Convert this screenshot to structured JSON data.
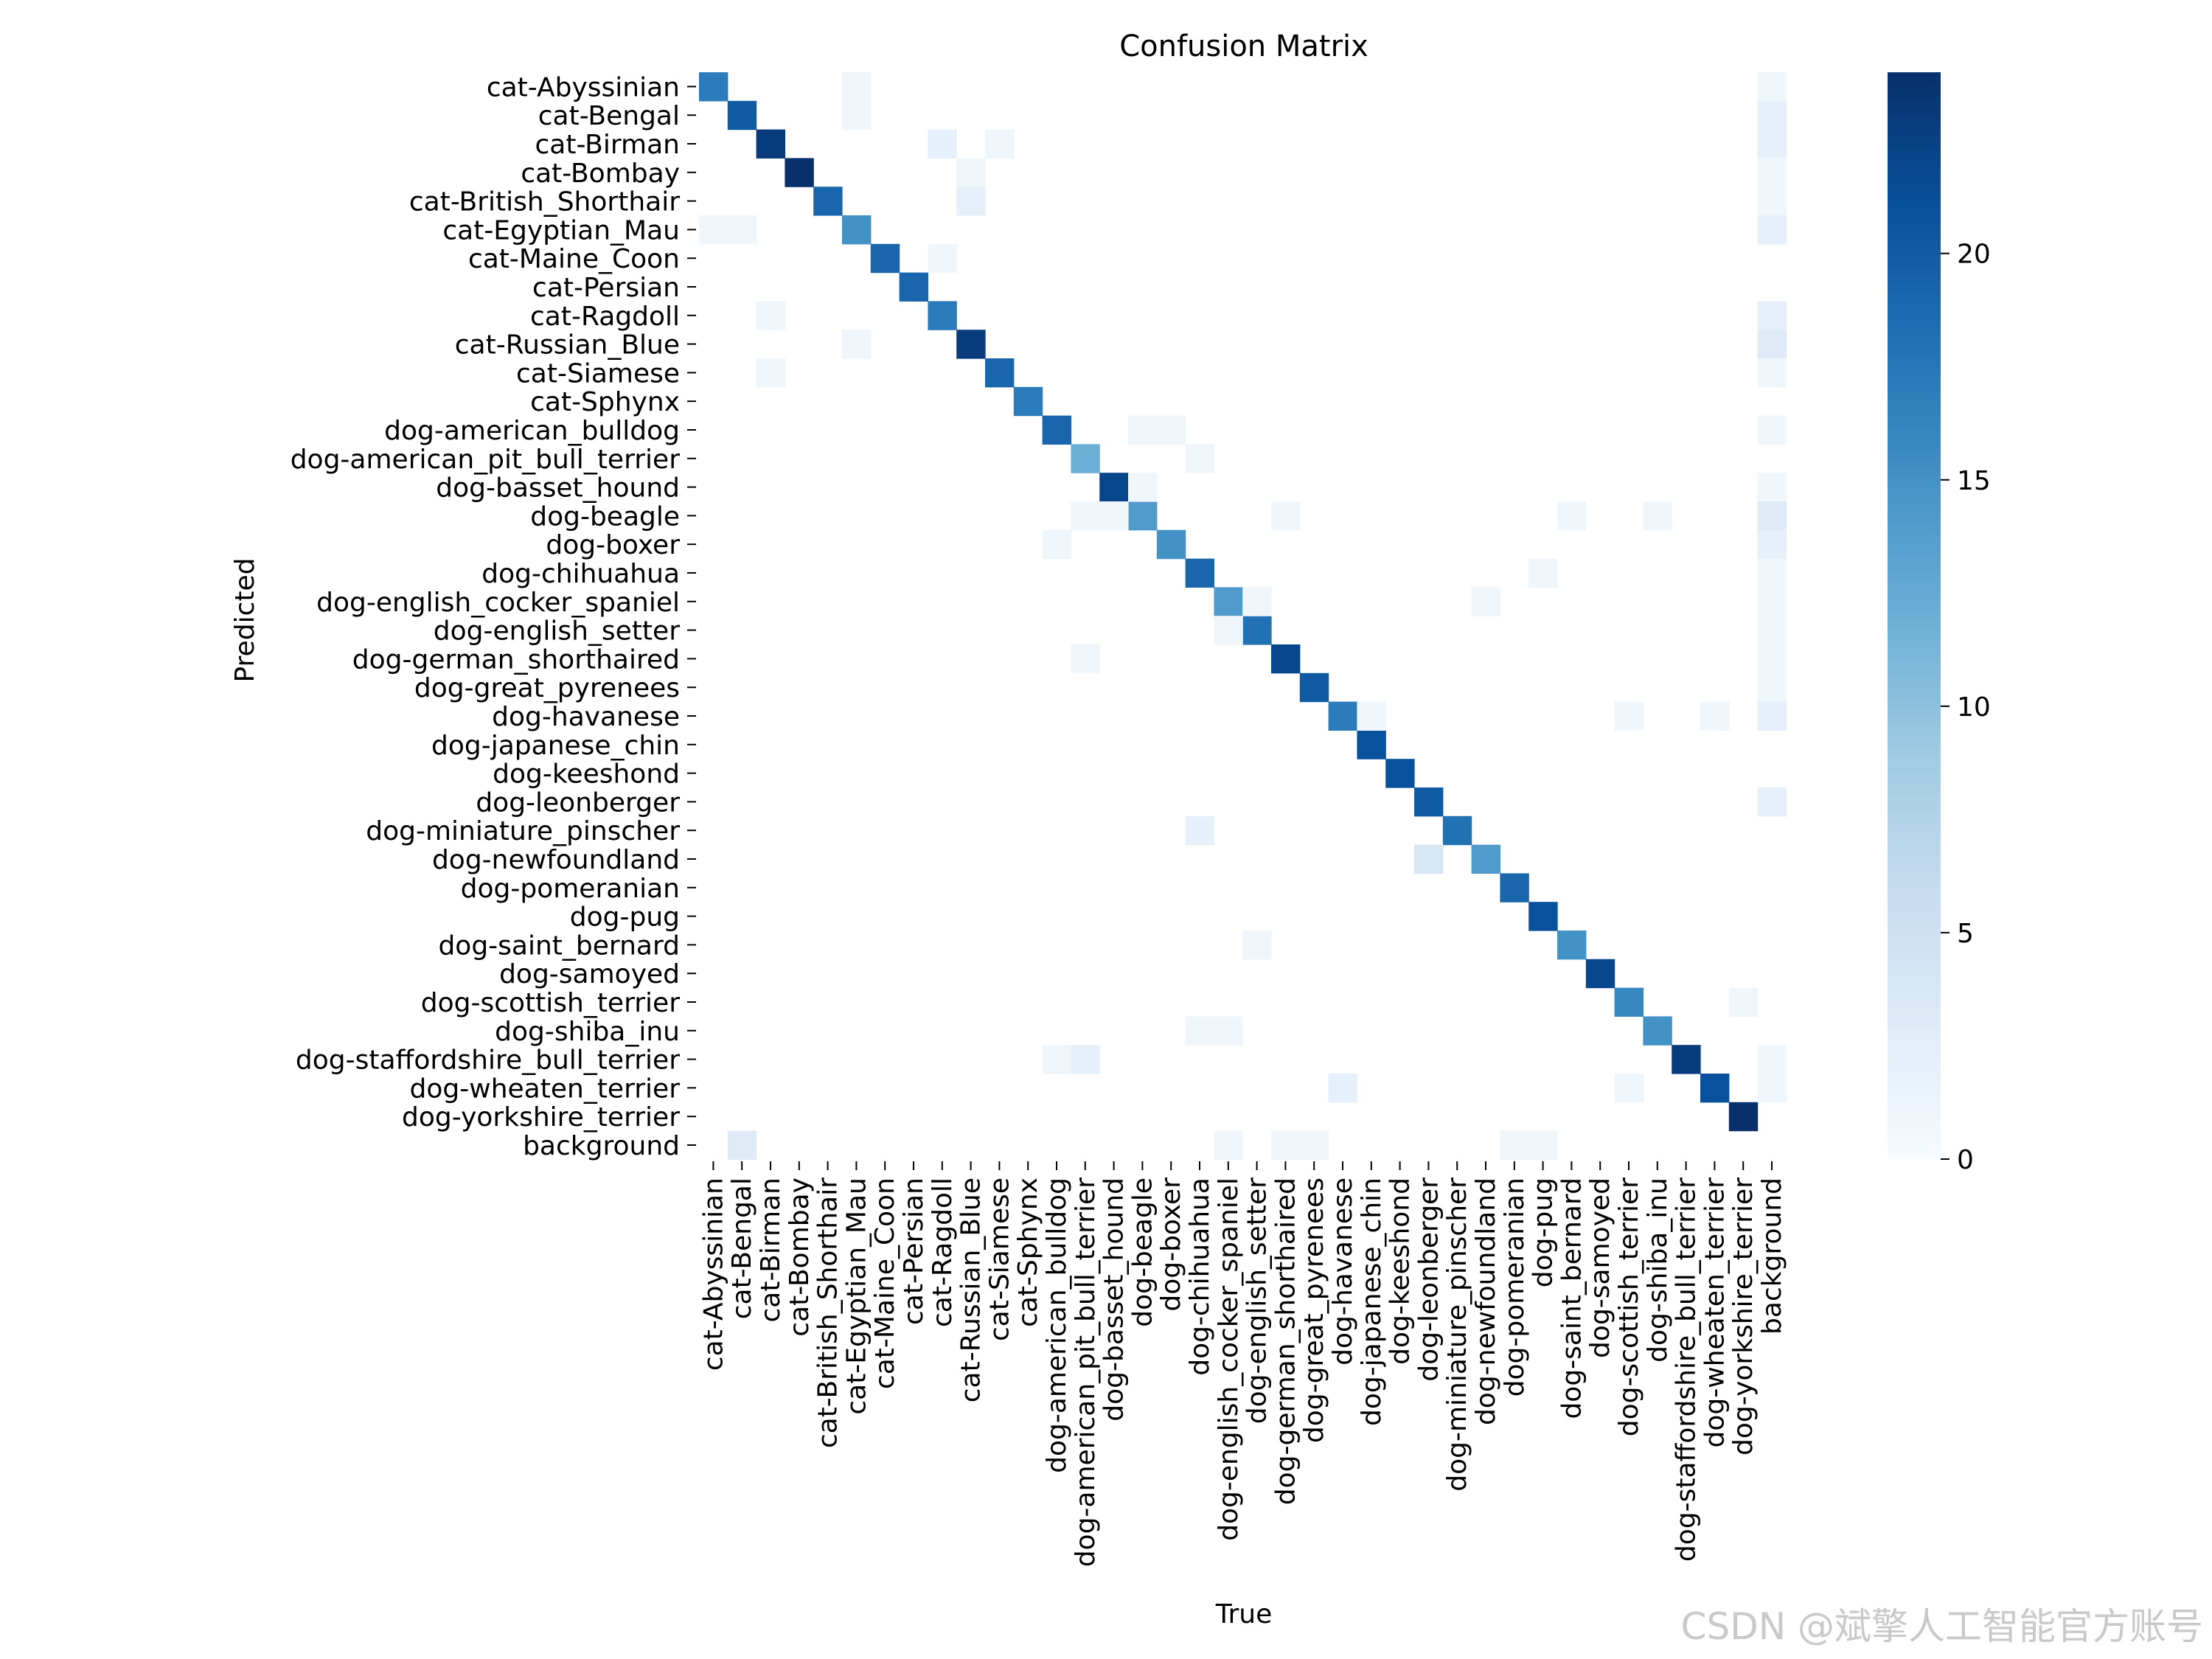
{
  "watermark": "CSDN @斌擎人工智能官方账号",
  "chart_data": {
    "type": "heatmap",
    "title": "Confusion Matrix",
    "xlabel": "True",
    "ylabel": "Predicted",
    "labels": [
      "cat-Abyssinian",
      "cat-Bengal",
      "cat-Birman",
      "cat-Bombay",
      "cat-British_Shorthair",
      "cat-Egyptian_Mau",
      "cat-Maine_Coon",
      "cat-Persian",
      "cat-Ragdoll",
      "cat-Russian_Blue",
      "cat-Siamese",
      "cat-Sphynx",
      "dog-american_bulldog",
      "dog-american_pit_bull_terrier",
      "dog-basset_hound",
      "dog-beagle",
      "dog-boxer",
      "dog-chihuahua",
      "dog-english_cocker_spaniel",
      "dog-english_setter",
      "dog-german_shorthaired",
      "dog-great_pyrenees",
      "dog-havanese",
      "dog-japanese_chin",
      "dog-keeshond",
      "dog-leonberger",
      "dog-miniature_pinscher",
      "dog-newfoundland",
      "dog-pomeranian",
      "dog-pug",
      "dog-saint_bernard",
      "dog-samoyed",
      "dog-scottish_terrier",
      "dog-shiba_inu",
      "dog-staffordshire_bull_terrier",
      "dog-wheaten_terrier",
      "dog-yorkshire_terrier",
      "background"
    ],
    "diagonal": [
      17,
      20,
      23,
      24,
      19,
      15,
      19,
      19,
      17,
      23,
      19,
      17,
      19,
      12,
      22,
      14,
      15,
      19,
      14,
      18,
      22,
      20,
      17,
      21,
      21,
      20,
      18,
      14,
      19,
      21,
      15,
      22,
      16,
      15,
      23,
      21,
      24
    ],
    "off_diagonal": [
      [
        0,
        5,
        1
      ],
      [
        0,
        37,
        1
      ],
      [
        1,
        5,
        1
      ],
      [
        1,
        37,
        2
      ],
      [
        2,
        8,
        2
      ],
      [
        2,
        10,
        1
      ],
      [
        2,
        37,
        2
      ],
      [
        3,
        9,
        1
      ],
      [
        3,
        37,
        1
      ],
      [
        4,
        9,
        2
      ],
      [
        4,
        37,
        1
      ],
      [
        5,
        0,
        1
      ],
      [
        5,
        1,
        1
      ],
      [
        5,
        37,
        2
      ],
      [
        6,
        8,
        1
      ],
      [
        8,
        2,
        1
      ],
      [
        8,
        37,
        2
      ],
      [
        9,
        5,
        1
      ],
      [
        9,
        37,
        3
      ],
      [
        10,
        2,
        1
      ],
      [
        10,
        37,
        1
      ],
      [
        12,
        15,
        1
      ],
      [
        12,
        16,
        1
      ],
      [
        12,
        37,
        1
      ],
      [
        13,
        17,
        1
      ],
      [
        14,
        15,
        1
      ],
      [
        14,
        37,
        1
      ],
      [
        15,
        13,
        1
      ],
      [
        15,
        14,
        1
      ],
      [
        15,
        20,
        1
      ],
      [
        15,
        30,
        1
      ],
      [
        15,
        33,
        1
      ],
      [
        15,
        37,
        3
      ],
      [
        16,
        12,
        1
      ],
      [
        16,
        37,
        2
      ],
      [
        17,
        29,
        1
      ],
      [
        17,
        37,
        1
      ],
      [
        18,
        19,
        1
      ],
      [
        18,
        27,
        1
      ],
      [
        18,
        37,
        1
      ],
      [
        19,
        18,
        1
      ],
      [
        19,
        37,
        1
      ],
      [
        20,
        13,
        1
      ],
      [
        20,
        37,
        1
      ],
      [
        21,
        37,
        1
      ],
      [
        22,
        23,
        1
      ],
      [
        22,
        32,
        1
      ],
      [
        22,
        35,
        1
      ],
      [
        22,
        37,
        2
      ],
      [
        25,
        37,
        2
      ],
      [
        26,
        17,
        2
      ],
      [
        27,
        25,
        4
      ],
      [
        30,
        19,
        1
      ],
      [
        32,
        36,
        1
      ],
      [
        33,
        17,
        1
      ],
      [
        33,
        18,
        1
      ],
      [
        34,
        12,
        1
      ],
      [
        34,
        13,
        2
      ],
      [
        34,
        37,
        1
      ],
      [
        35,
        22,
        2
      ],
      [
        35,
        32,
        1
      ],
      [
        35,
        37,
        1
      ],
      [
        37,
        1,
        3
      ],
      [
        37,
        18,
        1
      ],
      [
        37,
        20,
        1
      ],
      [
        37,
        21,
        1
      ],
      [
        37,
        28,
        1
      ],
      [
        37,
        29,
        1
      ]
    ],
    "colorbar": {
      "min": 0,
      "max": 24,
      "ticks": [
        0,
        5,
        10,
        15,
        20
      ],
      "colormap": "Blues"
    },
    "colors": {
      "low": "#f7fbff",
      "high": "#08306b"
    }
  }
}
